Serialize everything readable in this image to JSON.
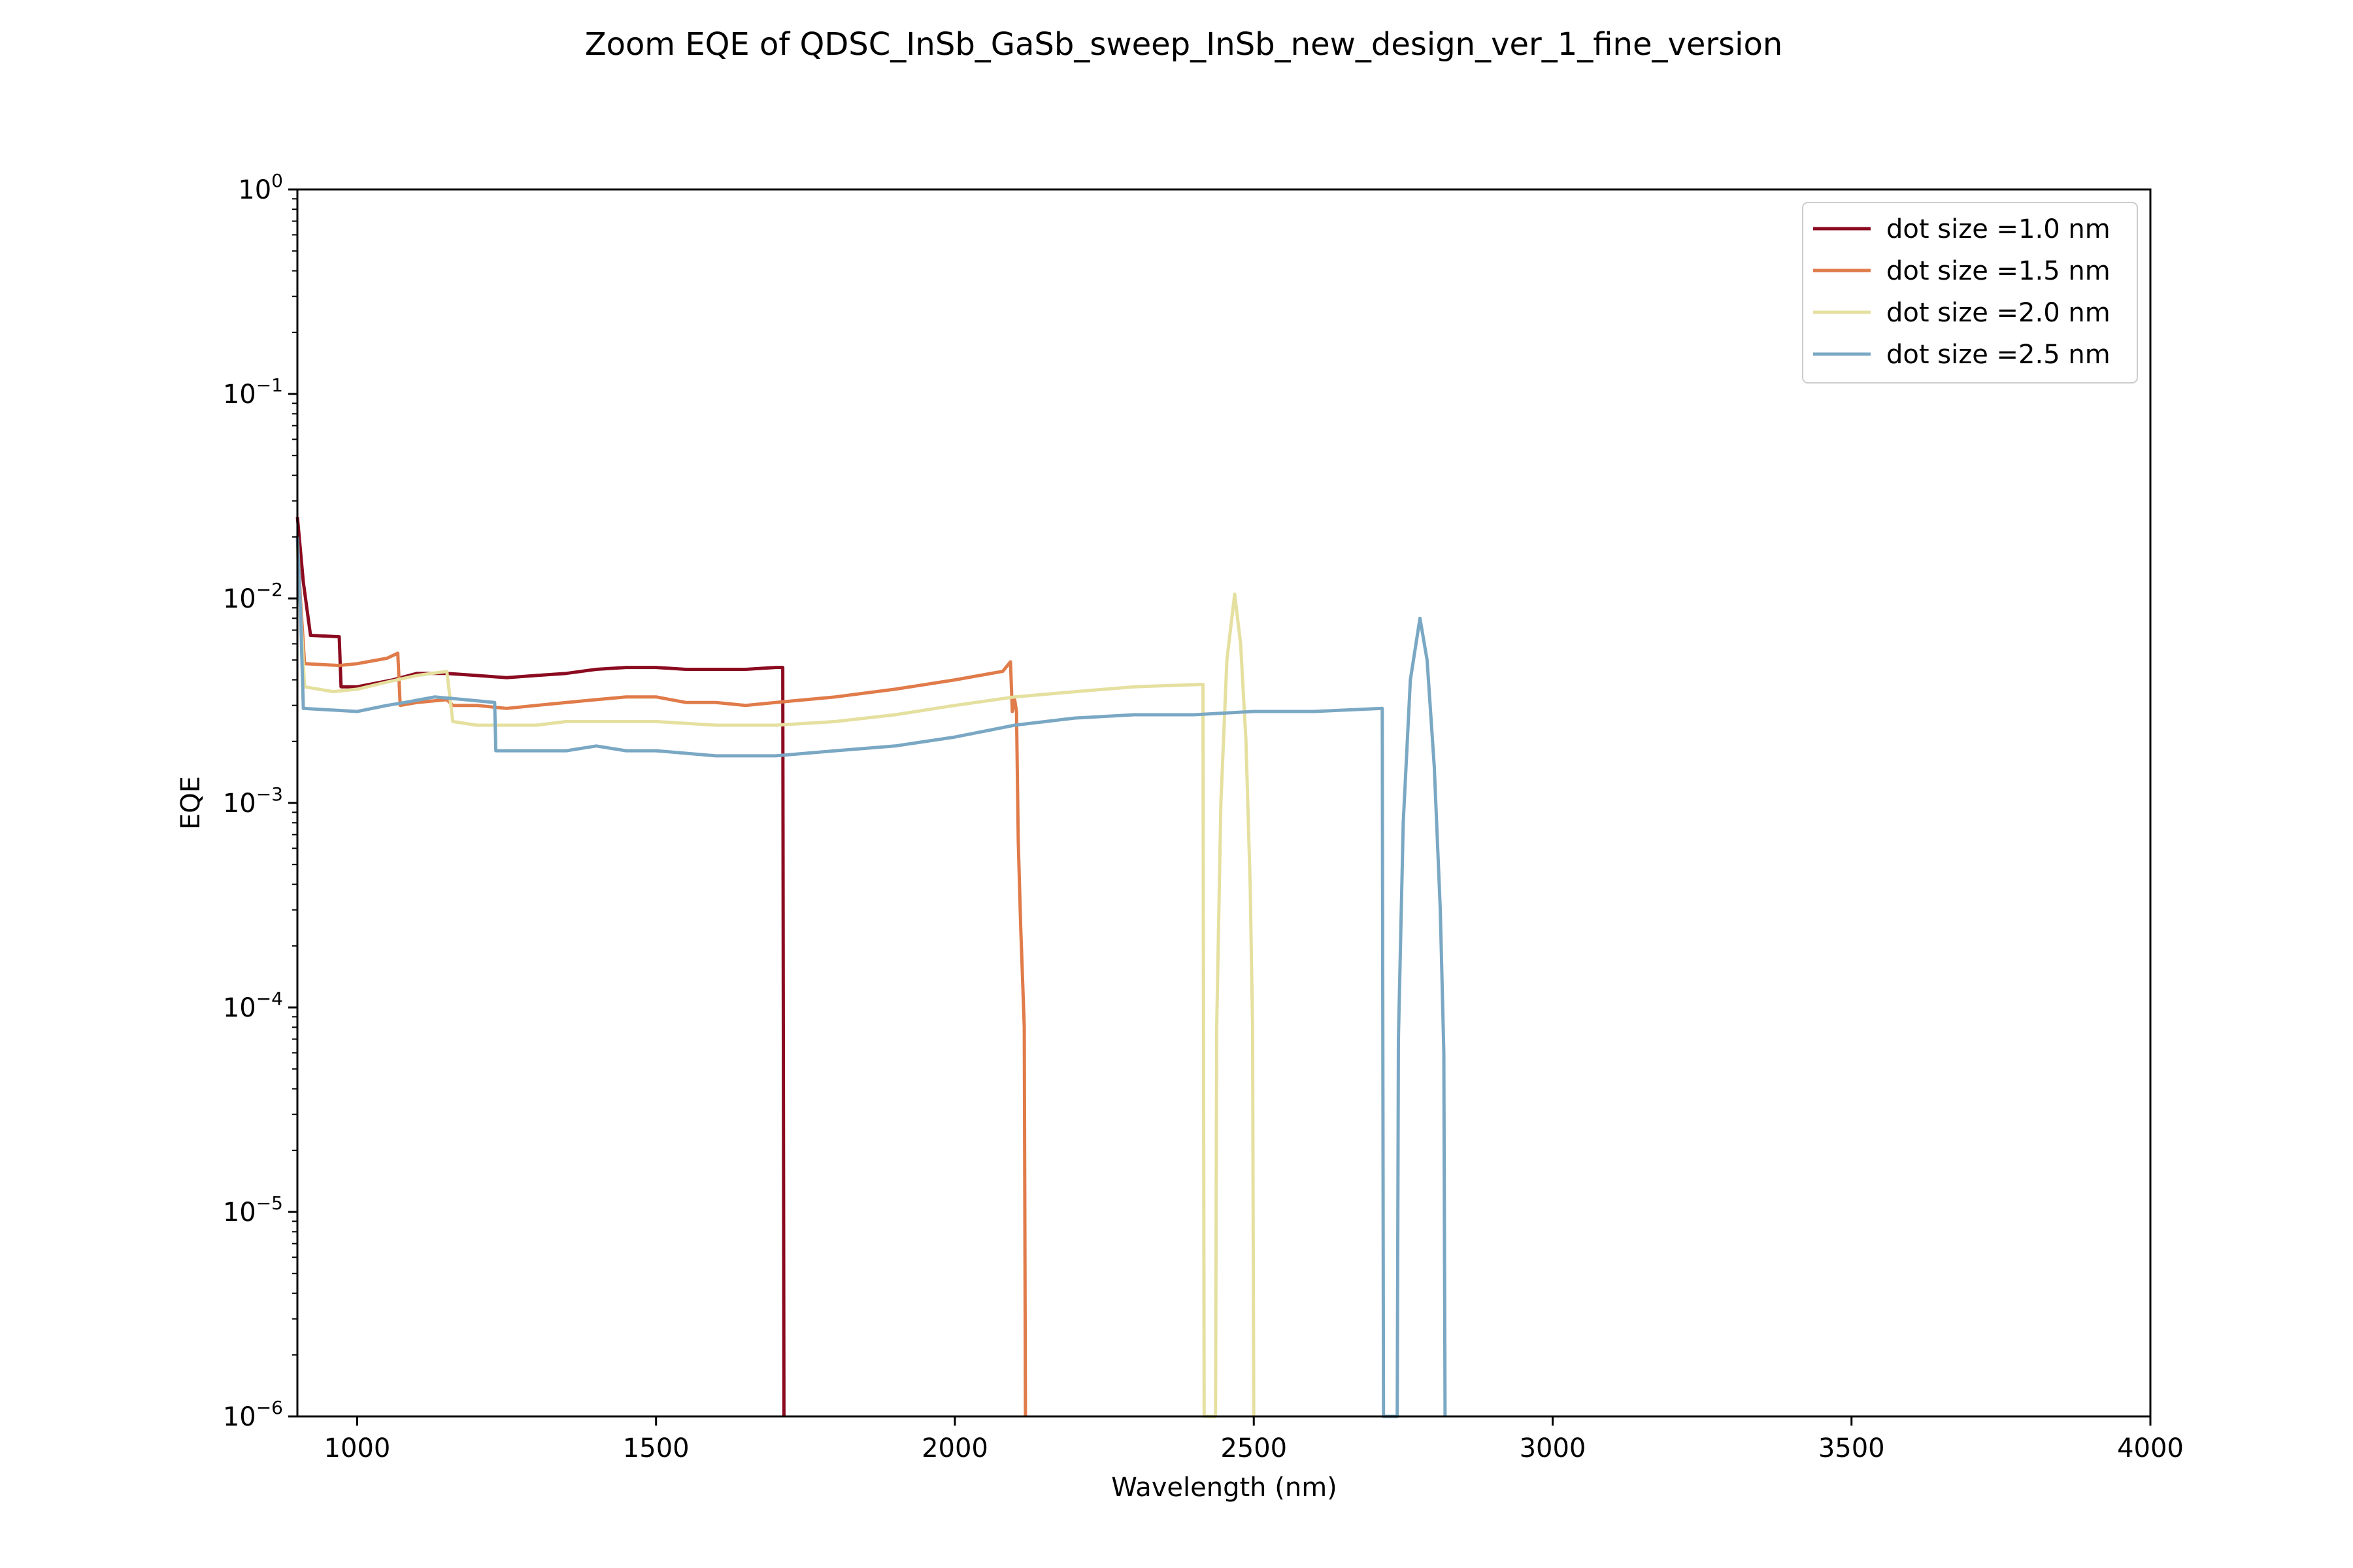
{
  "chart_data": {
    "type": "line",
    "title": "Zoom EQE of QDSC_InSb_GaSb_sweep_InSb_new_design_ver_1_fine_version",
    "xlabel": "Wavelength (nm)",
    "ylabel": "EQE",
    "xlim": [
      900,
      4000
    ],
    "ylim": [
      1e-06,
      1
    ],
    "yscale": "log",
    "grid": false,
    "legend_position": "upper-right",
    "x_ticks": [
      {
        "value": 1000,
        "label": "1000"
      },
      {
        "value": 1500,
        "label": "1500"
      },
      {
        "value": 2000,
        "label": "2000"
      },
      {
        "value": 2500,
        "label": "2500"
      },
      {
        "value": 3000,
        "label": "3000"
      },
      {
        "value": 3500,
        "label": "3500"
      },
      {
        "value": 4000,
        "label": "4000"
      }
    ],
    "y_ticks": [
      {
        "value": 1,
        "base": "10",
        "exp": "0"
      },
      {
        "value": 0.1,
        "base": "10",
        "exp": "−1"
      },
      {
        "value": 0.01,
        "base": "10",
        "exp": "−2"
      },
      {
        "value": 0.001,
        "base": "10",
        "exp": "−3"
      },
      {
        "value": 0.0001,
        "base": "10",
        "exp": "−4"
      },
      {
        "value": 1e-05,
        "base": "10",
        "exp": "−5"
      },
      {
        "value": 1e-06,
        "base": "10",
        "exp": "−6"
      }
    ],
    "series": [
      {
        "name": "dot size =1.0 nm",
        "color": "#8b0a1f",
        "points": [
          [
            900,
            0.025
          ],
          [
            910,
            0.012
          ],
          [
            922,
            0.0066
          ],
          [
            970,
            0.0065
          ],
          [
            973,
            0.0037
          ],
          [
            1000,
            0.0037
          ],
          [
            1060,
            0.004
          ],
          [
            1100,
            0.0043
          ],
          [
            1150,
            0.0043
          ],
          [
            1200,
            0.0042
          ],
          [
            1250,
            0.0041
          ],
          [
            1300,
            0.0042
          ],
          [
            1350,
            0.0043
          ],
          [
            1400,
            0.0045
          ],
          [
            1450,
            0.0046
          ],
          [
            1500,
            0.0046
          ],
          [
            1550,
            0.0045
          ],
          [
            1600,
            0.0045
          ],
          [
            1650,
            0.0045
          ],
          [
            1700,
            0.0046
          ],
          [
            1712,
            0.0046
          ],
          [
            1714,
            1e-06
          ]
        ]
      },
      {
        "name": "dot size =1.5 nm",
        "color": "#e07b4a",
        "points": [
          [
            900,
            0.02
          ],
          [
            905,
            0.01
          ],
          [
            912,
            0.0048
          ],
          [
            970,
            0.0047
          ],
          [
            1000,
            0.0048
          ],
          [
            1050,
            0.0051
          ],
          [
            1068,
            0.0054
          ],
          [
            1072,
            0.003
          ],
          [
            1100,
            0.0031
          ],
          [
            1150,
            0.0032
          ],
          [
            1160,
            0.003
          ],
          [
            1200,
            0.003
          ],
          [
            1250,
            0.0029
          ],
          [
            1300,
            0.003
          ],
          [
            1350,
            0.0031
          ],
          [
            1400,
            0.0032
          ],
          [
            1450,
            0.0033
          ],
          [
            1500,
            0.0033
          ],
          [
            1550,
            0.0031
          ],
          [
            1600,
            0.0031
          ],
          [
            1650,
            0.003
          ],
          [
            1700,
            0.0031
          ],
          [
            1800,
            0.0033
          ],
          [
            1900,
            0.0036
          ],
          [
            2000,
            0.004
          ],
          [
            2080,
            0.0044
          ],
          [
            2093,
            0.0049
          ],
          [
            2096,
            0.0028
          ],
          [
            2100,
            0.0032
          ],
          [
            2103,
            0.0028
          ],
          [
            2106,
            0.00065
          ],
          [
            2110,
            0.00025
          ],
          [
            2116,
            8e-05
          ],
          [
            2118,
            1e-06
          ]
        ]
      },
      {
        "name": "dot size =2.0 nm",
        "color": "#e5e0a0",
        "points": [
          [
            900,
            0.018
          ],
          [
            906,
            0.008
          ],
          [
            912,
            0.0037
          ],
          [
            960,
            0.0035
          ],
          [
            1000,
            0.0036
          ],
          [
            1050,
            0.0039
          ],
          [
            1100,
            0.0042
          ],
          [
            1150,
            0.0044
          ],
          [
            1160,
            0.0025
          ],
          [
            1200,
            0.0024
          ],
          [
            1250,
            0.0024
          ],
          [
            1300,
            0.0024
          ],
          [
            1350,
            0.0025
          ],
          [
            1400,
            0.0025
          ],
          [
            1450,
            0.0025
          ],
          [
            1500,
            0.0025
          ],
          [
            1600,
            0.0024
          ],
          [
            1700,
            0.0024
          ],
          [
            1800,
            0.0025
          ],
          [
            1900,
            0.0027
          ],
          [
            2000,
            0.003
          ],
          [
            2100,
            0.0033
          ],
          [
            2200,
            0.0035
          ],
          [
            2300,
            0.0037
          ],
          [
            2415,
            0.0038
          ],
          [
            2417,
            1e-06
          ],
          [
            2436,
            1e-06
          ],
          [
            2438,
            8e-05
          ],
          [
            2445,
            0.001
          ],
          [
            2455,
            0.005
          ],
          [
            2468,
            0.0105
          ],
          [
            2478,
            0.006
          ],
          [
            2487,
            0.002
          ],
          [
            2494,
            0.0004
          ],
          [
            2498,
            8e-05
          ],
          [
            2500,
            1e-06
          ]
        ]
      },
      {
        "name": "dot size =2.5 nm",
        "color": "#7aa8c4",
        "points": [
          [
            900,
            0.02
          ],
          [
            905,
            0.009
          ],
          [
            910,
            0.0029
          ],
          [
            1000,
            0.0028
          ],
          [
            1050,
            0.003
          ],
          [
            1080,
            0.0031
          ],
          [
            1130,
            0.0033
          ],
          [
            1180,
            0.0032
          ],
          [
            1230,
            0.0031
          ],
          [
            1232,
            0.0018
          ],
          [
            1300,
            0.0018
          ],
          [
            1350,
            0.0018
          ],
          [
            1400,
            0.0019
          ],
          [
            1450,
            0.0018
          ],
          [
            1500,
            0.0018
          ],
          [
            1600,
            0.0017
          ],
          [
            1700,
            0.0017
          ],
          [
            1800,
            0.0018
          ],
          [
            1900,
            0.0019
          ],
          [
            2000,
            0.0021
          ],
          [
            2100,
            0.0024
          ],
          [
            2200,
            0.0026
          ],
          [
            2300,
            0.0027
          ],
          [
            2400,
            0.0027
          ],
          [
            2500,
            0.0028
          ],
          [
            2600,
            0.0028
          ],
          [
            2715,
            0.0029
          ],
          [
            2717,
            1e-06
          ],
          [
            2740,
            1e-06
          ],
          [
            2742,
            7e-05
          ],
          [
            2750,
            0.0008
          ],
          [
            2762,
            0.004
          ],
          [
            2778,
            0.008
          ],
          [
            2790,
            0.005
          ],
          [
            2802,
            0.0015
          ],
          [
            2812,
            0.0003
          ],
          [
            2818,
            6e-05
          ],
          [
            2820,
            1e-06
          ]
        ]
      }
    ]
  }
}
